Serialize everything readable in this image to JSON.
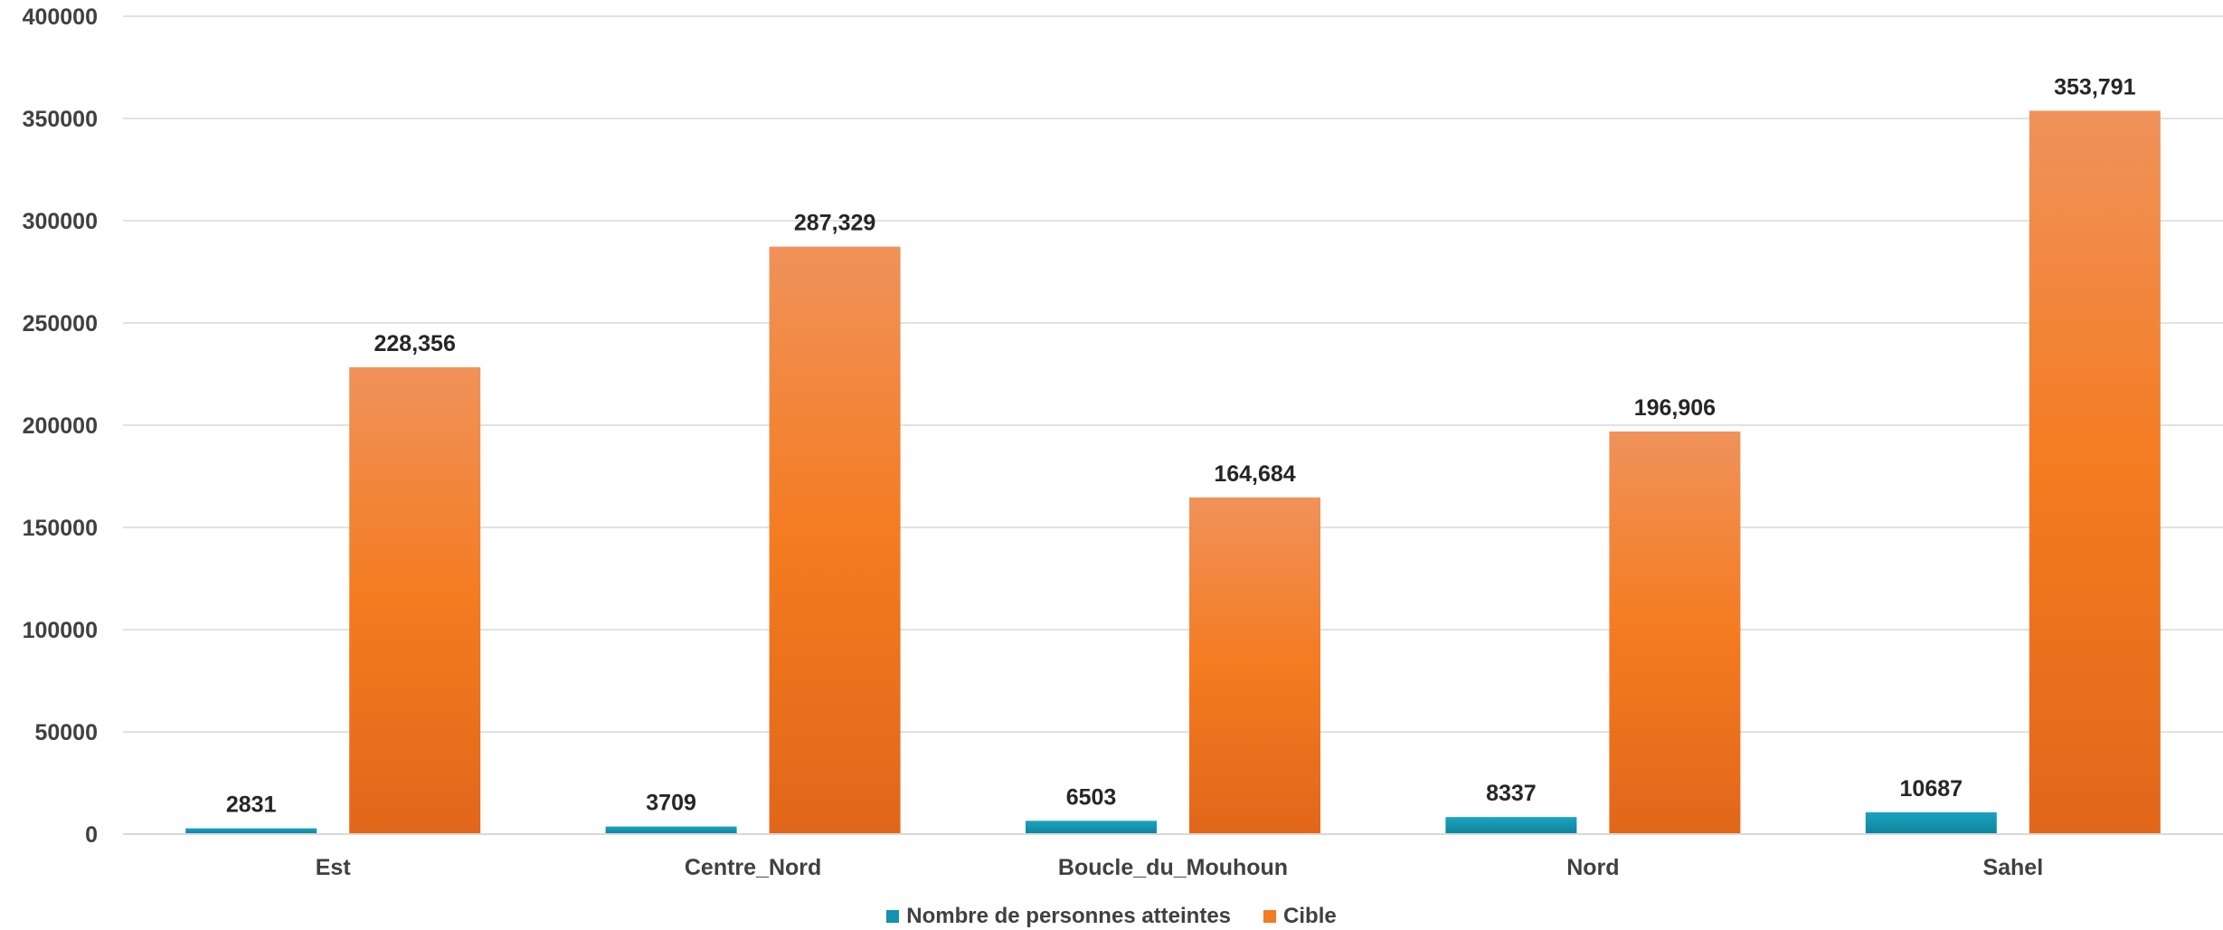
{
  "chart_data": {
    "type": "bar",
    "title": "",
    "xlabel": "",
    "ylabel": "",
    "categories": [
      "Est",
      "Centre_Nord",
      "Boucle_du_Mouhoun",
      "Nord",
      "Sahel"
    ],
    "series": [
      {
        "name": "Nombre de personnes atteintes",
        "values": [
          2831,
          3709,
          6503,
          8337,
          10687
        ],
        "labels": [
          "2831",
          "3709",
          "6503",
          "8337",
          "10687"
        ],
        "color": "#1192AE"
      },
      {
        "name": "Cible",
        "values": [
          228356,
          287329,
          164684,
          196906,
          353791
        ],
        "labels": [
          "228,356",
          "287,329",
          "164,684",
          "196,906",
          "353,791"
        ],
        "color": "#F47B20"
      }
    ],
    "ylim": [
      0,
      400000
    ],
    "yticks": [
      0,
      50000,
      100000,
      150000,
      200000,
      250000,
      300000,
      350000,
      400000
    ],
    "ytick_labels": [
      "0",
      "50000",
      "100000",
      "150000",
      "200000",
      "250000",
      "300000",
      "350000",
      "400000"
    ],
    "grid": true,
    "legend_position": "bottom"
  }
}
